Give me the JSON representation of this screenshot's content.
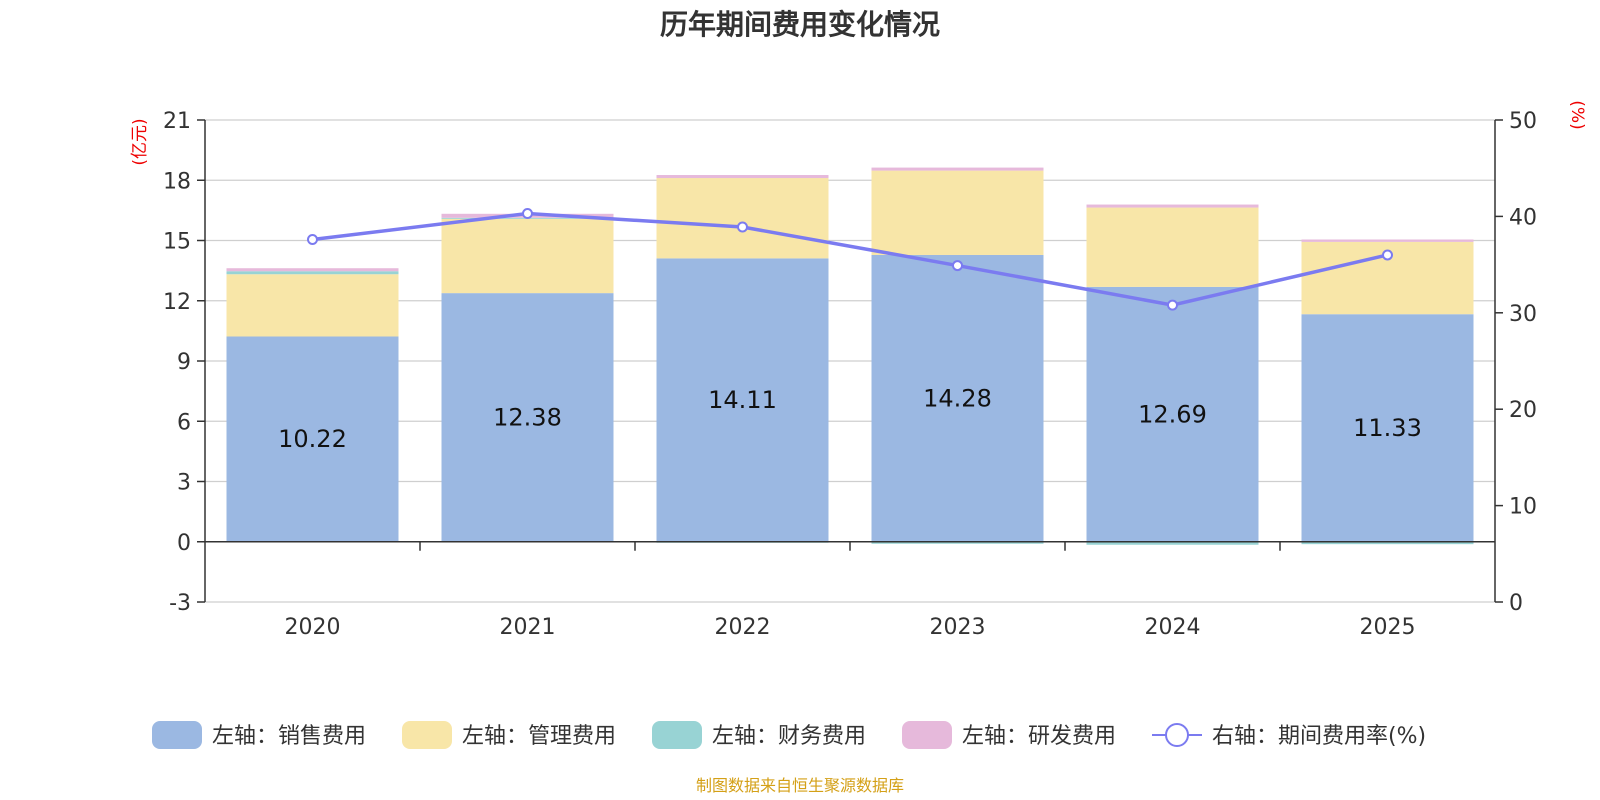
{
  "chart_data": {
    "type": "bar",
    "stacked": true,
    "title": "历年期间费用变化情况",
    "categories": [
      "2020",
      "2021",
      "2022",
      "2023",
      "2024",
      "2025"
    ],
    "left_axis": {
      "unit": "(亿元)",
      "ylim": [
        -3,
        21
      ],
      "ticks": [
        -3,
        0,
        3,
        6,
        9,
        12,
        15,
        18,
        21
      ]
    },
    "right_axis": {
      "unit": "(%)",
      "ylim": [
        0,
        50
      ],
      "ticks": [
        0,
        10,
        20,
        30,
        40,
        50
      ]
    },
    "series": [
      {
        "name": "左轴：销售费用",
        "axis": "left",
        "color": "#9bb8e2",
        "values": [
          10.22,
          12.38,
          14.11,
          14.28,
          12.69,
          11.33
        ],
        "show_labels": true
      },
      {
        "name": "左轴：管理费用",
        "axis": "left",
        "color": "#f8e6a8",
        "values": [
          3.1,
          3.7,
          4.0,
          4.2,
          3.95,
          3.6
        ]
      },
      {
        "name": "左轴：财务费用",
        "axis": "left",
        "color": "#98d3d4",
        "values": [
          0.15,
          0.05,
          -0.05,
          -0.1,
          -0.15,
          -0.12
        ]
      },
      {
        "name": "左轴：研发费用",
        "axis": "left",
        "color": "#e6b9db",
        "values": [
          0.15,
          0.2,
          0.15,
          0.15,
          0.15,
          0.12
        ]
      },
      {
        "name": "右轴：期间费用率(%)",
        "axis": "right",
        "type": "line",
        "color": "#7b7bf0",
        "values": [
          37.6,
          40.3,
          38.9,
          34.9,
          30.8,
          36.0
        ]
      }
    ],
    "source": "制图数据来自恒生聚源数据库"
  }
}
